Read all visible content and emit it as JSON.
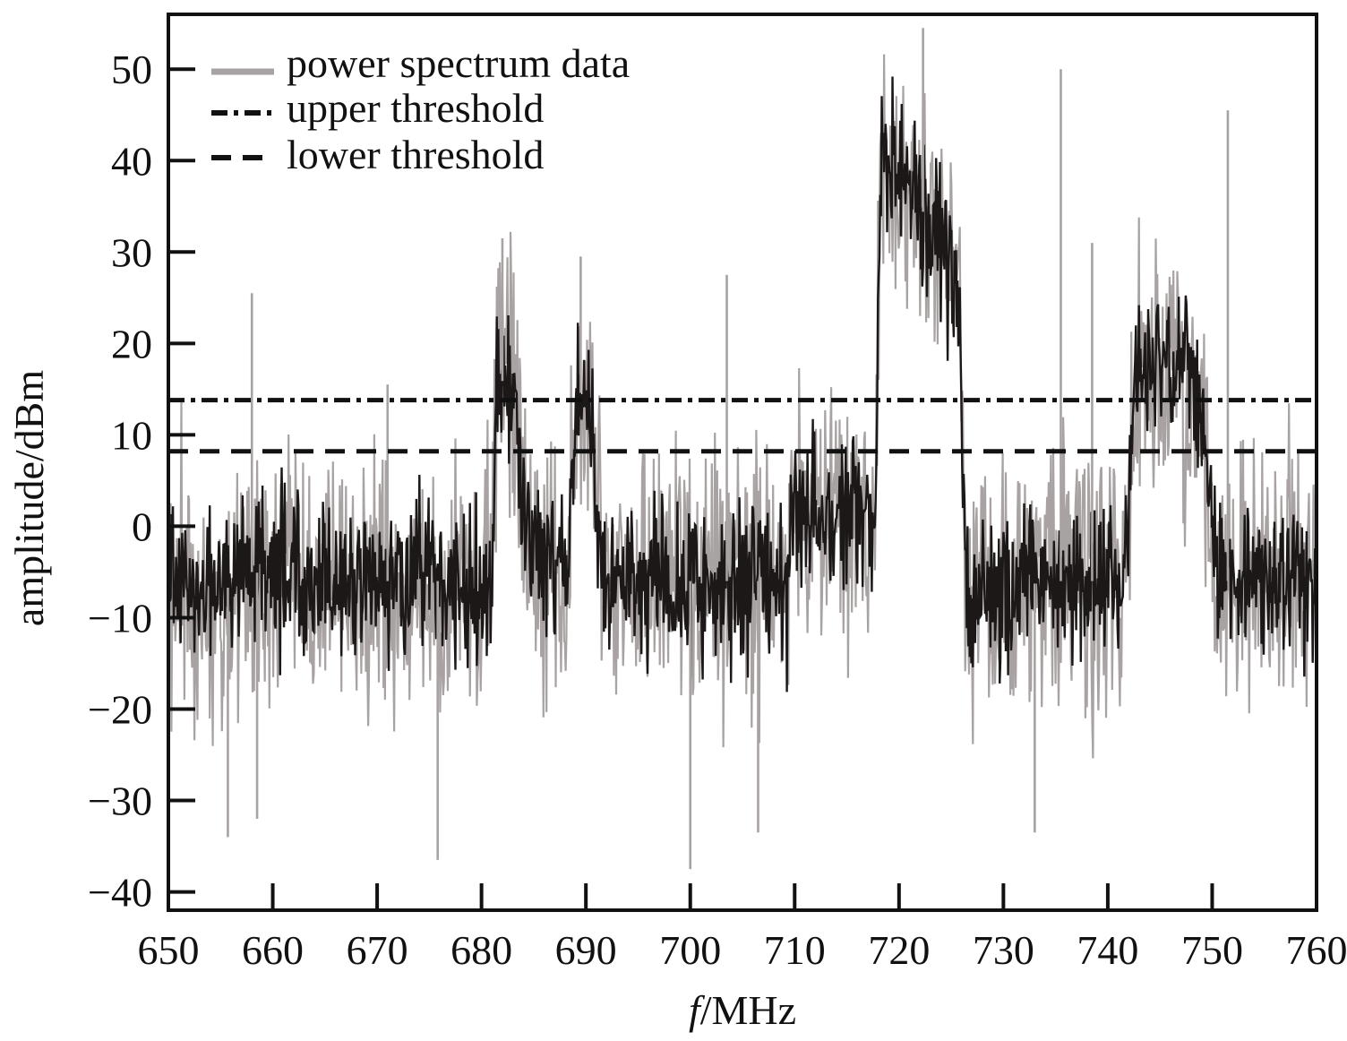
{
  "chart_data": {
    "type": "line",
    "xlabel_italic": "f",
    "xlabel_rest": "/MHz",
    "ylabel": "amplitude/dBm",
    "xlim": [
      650,
      760
    ],
    "ylim": [
      -42,
      56
    ],
    "xticks": [
      650,
      660,
      670,
      680,
      690,
      700,
      710,
      720,
      730,
      740,
      750,
      760
    ],
    "yticks": [
      50,
      40,
      30,
      20,
      10,
      0,
      -10,
      -20,
      -30,
      -40
    ],
    "ytick_labels": [
      "50",
      "40",
      "30",
      "20",
      "10",
      "0",
      "−10",
      "−20",
      "−30",
      "−40"
    ],
    "grid": false,
    "legend_position": "top-left",
    "series": [
      {
        "name": "power spectrum data",
        "style": "solid",
        "color_light": "#a8a2a2",
        "color_dark": "#1c1818",
        "band_profile": [
          {
            "x": 650,
            "y": -6
          },
          {
            "x": 654,
            "y": -8
          },
          {
            "x": 658,
            "y": -5
          },
          {
            "x": 664,
            "y": -6
          },
          {
            "x": 670,
            "y": -6
          },
          {
            "x": 676,
            "y": -6
          },
          {
            "x": 680.9,
            "y": -6
          },
          {
            "x": 681.5,
            "y": 17
          },
          {
            "x": 683.3,
            "y": 13
          },
          {
            "x": 684.2,
            "y": -2
          },
          {
            "x": 687,
            "y": -4
          },
          {
            "x": 688.3,
            "y": -6
          },
          {
            "x": 689,
            "y": 15
          },
          {
            "x": 690.2,
            "y": 14
          },
          {
            "x": 691.5,
            "y": -6
          },
          {
            "x": 700,
            "y": -6
          },
          {
            "x": 709.3,
            "y": -6
          },
          {
            "x": 709.8,
            "y": 2
          },
          {
            "x": 717.7,
            "y": 0
          },
          {
            "x": 718.3,
            "y": 40
          },
          {
            "x": 721,
            "y": 37
          },
          {
            "x": 724,
            "y": 31
          },
          {
            "x": 725.8,
            "y": 25
          },
          {
            "x": 726.4,
            "y": -8
          },
          {
            "x": 734,
            "y": -6
          },
          {
            "x": 741.7,
            "y": -6
          },
          {
            "x": 742.5,
            "y": 17
          },
          {
            "x": 747,
            "y": 17
          },
          {
            "x": 749.2,
            "y": 12
          },
          {
            "x": 750.5,
            "y": -6
          },
          {
            "x": 760,
            "y": -6
          }
        ],
        "spikes": [
          {
            "x": 658.0,
            "y": 25.5
          },
          {
            "x": 671.0,
            "y": 15.5
          },
          {
            "x": 682.0,
            "y": 31.5
          },
          {
            "x": 689.5,
            "y": 29.5
          },
          {
            "x": 700.0,
            "y": -37.5
          },
          {
            "x": 703.5,
            "y": 27.5
          },
          {
            "x": 722.3,
            "y": 54.5
          },
          {
            "x": 735.5,
            "y": 50.0
          },
          {
            "x": 738.5,
            "y": 31.0
          },
          {
            "x": 751.5,
            "y": 45.5
          },
          {
            "x": 658.5,
            "y": -32.0
          },
          {
            "x": 655.7,
            "y": -34.0
          },
          {
            "x": 675.8,
            "y": -36.5
          },
          {
            "x": 706.5,
            "y": -33.5
          },
          {
            "x": 733.0,
            "y": -33.5
          }
        ]
      },
      {
        "name": "upper threshold",
        "style": "dash-dot",
        "color": "#111111",
        "x": [
          650,
          760
        ],
        "y": [
          13.8,
          13.8
        ]
      },
      {
        "name": "lower threshold",
        "style": "dashed",
        "color": "#111111",
        "x": [
          650,
          760
        ],
        "y": [
          8.2,
          8.2
        ]
      }
    ]
  }
}
